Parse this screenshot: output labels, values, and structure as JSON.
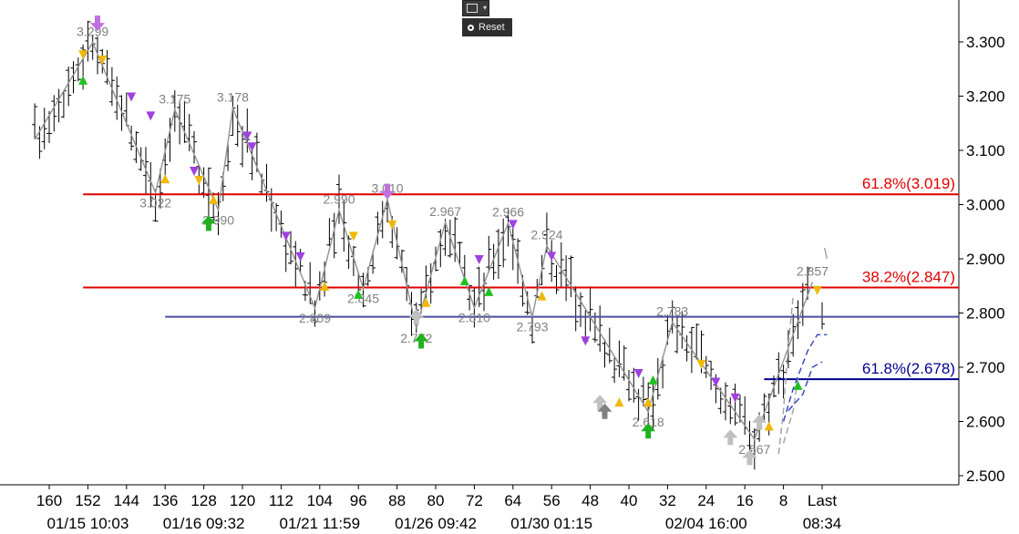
{
  "toolbar": {
    "chart_icon": "line-chart-icon",
    "dropdown_icon": "chevron-down-icon",
    "reset_label": "Reset"
  },
  "chart_data": {
    "type": "candlestick",
    "title": "",
    "xlabel": "",
    "ylabel": "",
    "ylim": [
      2.48,
      3.37
    ],
    "xlim": [
      163,
      -7
    ],
    "grid": false,
    "y_ticks": [
      "2.500",
      "2.600",
      "2.700",
      "2.800",
      "2.900",
      "3.000",
      "3.100",
      "3.200",
      "3.300"
    ],
    "x_ticks": [
      "160",
      "152",
      "144",
      "136",
      "128",
      "120",
      "112",
      "104",
      "96",
      "88",
      "80",
      "72",
      "64",
      "56",
      "48",
      "40",
      "32",
      "24",
      "16",
      "8",
      "Last"
    ],
    "date_ticks": [
      {
        "label": "01/15 10:03",
        "x": 152
      },
      {
        "label": "01/16 09:32",
        "x": 128
      },
      {
        "label": "01/21 11:59",
        "x": 104
      },
      {
        "label": "01/26 09:42",
        "x": 80
      },
      {
        "label": "01/30 01:15",
        "x": 56
      },
      {
        "label": "02/04 16:00",
        "x": 24
      },
      {
        "label": "08:34",
        "x": 0
      }
    ],
    "levels": [
      {
        "label": "61.8%(3.019)",
        "value": 3.019,
        "color": "#e00000",
        "x_start": 153
      },
      {
        "label": "38.2%(2.847)",
        "value": 2.847,
        "color": "#e00000",
        "x_start": 153
      },
      {
        "label": "",
        "value": 2.793,
        "color": "#4b4ba0",
        "x_start": 136
      },
      {
        "label": "61.8%(2.678)",
        "value": 2.678,
        "color": "#000090",
        "x_start": 12
      }
    ],
    "swings": [
      {
        "x": 163,
        "y": 3.12,
        "label": ""
      },
      {
        "x": 151,
        "y": 3.299,
        "label": "3.299"
      },
      {
        "x": 138,
        "y": 3.022,
        "label": "3.022"
      },
      {
        "x": 134,
        "y": 3.175,
        "label": "3.175"
      },
      {
        "x": 125,
        "y": 2.99,
        "label": "2.990"
      },
      {
        "x": 122,
        "y": 3.178,
        "label": "3.178"
      },
      {
        "x": 105,
        "y": 2.809,
        "label": "2.809"
      },
      {
        "x": 100,
        "y": 2.99,
        "label": "2.990"
      },
      {
        "x": 95,
        "y": 2.845,
        "label": "2.845"
      },
      {
        "x": 90,
        "y": 3.01,
        "label": "3.010"
      },
      {
        "x": 84,
        "y": 2.772,
        "label": "2.772"
      },
      {
        "x": 78,
        "y": 2.967,
        "label": "2.967"
      },
      {
        "x": 72,
        "y": 2.81,
        "label": "2.810"
      },
      {
        "x": 65,
        "y": 2.966,
        "label": "2.966"
      },
      {
        "x": 60,
        "y": 2.793,
        "label": "2.793"
      },
      {
        "x": 57,
        "y": 2.924,
        "label": "2.924"
      },
      {
        "x": 36,
        "y": 2.618,
        "label": "2.618"
      },
      {
        "x": 31,
        "y": 2.783,
        "label": "2.783"
      },
      {
        "x": 14,
        "y": 2.567,
        "label": "2.567"
      },
      {
        "x": 2,
        "y": 2.857,
        "label": "2.857"
      }
    ],
    "projection_bands": [
      {
        "color": "#a0a0a0",
        "points": [
          [
            9,
            2.54
          ],
          [
            8,
            2.62
          ],
          [
            7,
            2.74
          ],
          [
            6,
            2.83
          ]
        ]
      },
      {
        "color": "#a0a0a0",
        "points": [
          [
            8,
            2.56
          ],
          [
            6,
            2.62
          ],
          [
            5,
            2.68
          ]
        ]
      },
      {
        "color": "#3040c0",
        "points": [
          [
            7,
            2.62
          ],
          [
            4,
            2.65
          ],
          [
            2,
            2.7
          ],
          [
            0,
            2.71
          ]
        ]
      },
      {
        "color": "#3040c0",
        "points": [
          [
            8,
            2.6
          ],
          [
            6,
            2.66
          ],
          [
            3,
            2.73
          ],
          [
            1,
            2.76
          ],
          [
            -1,
            2.76
          ]
        ]
      }
    ],
    "signals": [
      {
        "x": 150,
        "y": 3.335,
        "kind": "big-down",
        "color": "#c070e0"
      },
      {
        "x": 153,
        "y": 3.278,
        "kind": "down",
        "color": "#f0b800"
      },
      {
        "x": 149,
        "y": 3.268,
        "kind": "down",
        "color": "#f0b800"
      },
      {
        "x": 153,
        "y": 3.228,
        "kind": "up",
        "color": "#20c020"
      },
      {
        "x": 143,
        "y": 3.2,
        "kind": "down",
        "color": "#a040e0"
      },
      {
        "x": 139,
        "y": 3.165,
        "kind": "down",
        "color": "#a040e0"
      },
      {
        "x": 136,
        "y": 3.046,
        "kind": "up",
        "color": "#f0b800"
      },
      {
        "x": 130,
        "y": 3.063,
        "kind": "down",
        "color": "#a040e0"
      },
      {
        "x": 129,
        "y": 3.046,
        "kind": "down",
        "color": "#f0b800"
      },
      {
        "x": 126,
        "y": 3.008,
        "kind": "up",
        "color": "#f0b800"
      },
      {
        "x": 127,
        "y": 2.965,
        "kind": "big-up",
        "color": "#20b020"
      },
      {
        "x": 119,
        "y": 3.128,
        "kind": "down",
        "color": "#a040e0"
      },
      {
        "x": 118,
        "y": 3.108,
        "kind": "down",
        "color": "#a040e0"
      },
      {
        "x": 111,
        "y": 2.943,
        "kind": "down",
        "color": "#a040e0"
      },
      {
        "x": 108,
        "y": 2.905,
        "kind": "down",
        "color": "#a040e0"
      },
      {
        "x": 103,
        "y": 2.848,
        "kind": "up",
        "color": "#f0b800"
      },
      {
        "x": 97,
        "y": 2.943,
        "kind": "down",
        "color": "#f0b800"
      },
      {
        "x": 96,
        "y": 2.833,
        "kind": "up",
        "color": "#20c020"
      },
      {
        "x": 90,
        "y": 3.025,
        "kind": "big-down",
        "color": "#c070e0"
      },
      {
        "x": 89,
        "y": 2.964,
        "kind": "down",
        "color": "#f0b800"
      },
      {
        "x": 84,
        "y": 2.792,
        "kind": "big-up",
        "color": "#c0c0c0"
      },
      {
        "x": 82,
        "y": 2.818,
        "kind": "up",
        "color": "#f0b800"
      },
      {
        "x": 83,
        "y": 2.748,
        "kind": "big-up",
        "color": "#20b020"
      },
      {
        "x": 74,
        "y": 2.858,
        "kind": "up",
        "color": "#20c020"
      },
      {
        "x": 71,
        "y": 2.9,
        "kind": "down",
        "color": "#a040e0"
      },
      {
        "x": 69,
        "y": 2.838,
        "kind": "up",
        "color": "#20c020"
      },
      {
        "x": 64,
        "y": 2.965,
        "kind": "down",
        "color": "#a040e0"
      },
      {
        "x": 58,
        "y": 2.83,
        "kind": "up",
        "color": "#f0b800"
      },
      {
        "x": 56,
        "y": 2.906,
        "kind": "down",
        "color": "#a040e0"
      },
      {
        "x": 49,
        "y": 2.75,
        "kind": "down",
        "color": "#a040e0"
      },
      {
        "x": 46,
        "y": 2.634,
        "kind": "big-up",
        "color": "#c0c0c0"
      },
      {
        "x": 42,
        "y": 2.634,
        "kind": "up",
        "color": "#f0b800"
      },
      {
        "x": 45,
        "y": 2.618,
        "kind": "big-up",
        "color": "#808080"
      },
      {
        "x": 38,
        "y": 2.69,
        "kind": "down",
        "color": "#a040e0"
      },
      {
        "x": 36,
        "y": 2.634,
        "kind": "up",
        "color": "#f0b800"
      },
      {
        "x": 35,
        "y": 2.675,
        "kind": "up",
        "color": "#20c020"
      },
      {
        "x": 36,
        "y": 2.582,
        "kind": "big-up",
        "color": "#20b020"
      },
      {
        "x": 25,
        "y": 2.707,
        "kind": "down",
        "color": "#f0b800"
      },
      {
        "x": 22,
        "y": 2.674,
        "kind": "down",
        "color": "#a040e0"
      },
      {
        "x": 18,
        "y": 2.645,
        "kind": "down",
        "color": "#a040e0"
      },
      {
        "x": 19,
        "y": 2.57,
        "kind": "big-up",
        "color": "#c0c0c0"
      },
      {
        "x": 15,
        "y": 2.533,
        "kind": "big-up",
        "color": "#c0c0c0"
      },
      {
        "x": 13,
        "y": 2.598,
        "kind": "big-up",
        "color": "#c0c0c0"
      },
      {
        "x": 11,
        "y": 2.59,
        "kind": "up",
        "color": "#f0b800"
      },
      {
        "x": 5,
        "y": 2.665,
        "kind": "up",
        "color": "#20c020"
      },
      {
        "x": 1,
        "y": 2.843,
        "kind": "down",
        "color": "#f0b800"
      }
    ]
  }
}
